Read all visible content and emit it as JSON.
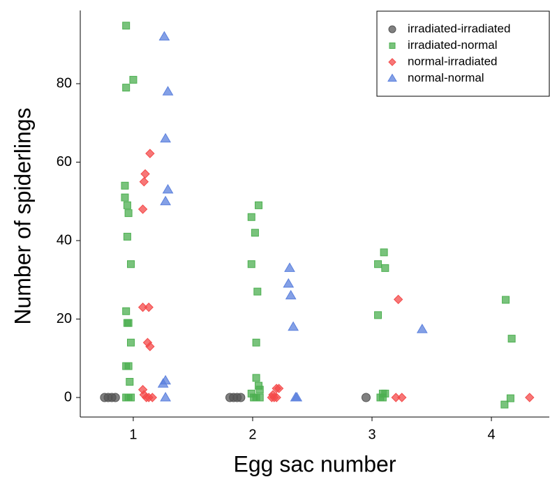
{
  "chart_data": {
    "type": "scatter",
    "x_label": "Egg sac number",
    "y_label": "Number of spiderlings",
    "xlim": [
      0.556,
      4.485
    ],
    "ylim": [
      -4.98,
      98.67
    ],
    "xticks": [
      1,
      2,
      3,
      4
    ],
    "yticks": [
      0,
      20,
      40,
      60,
      80
    ],
    "grid": false,
    "legend_position": "upper right",
    "series": [
      {
        "name": "irradiated-irradiated",
        "color": "#555555",
        "marker": "circle",
        "x": [
          0.76,
          0.79,
          0.82,
          0.85,
          1.81,
          1.84,
          1.87,
          1.9,
          2.95
        ],
        "values": [
          0,
          0,
          0,
          0,
          0,
          0,
          0,
          0,
          0
        ]
      },
      {
        "name": "irradiated-normal",
        "color": "#4caf50",
        "marker": "square",
        "x": [
          0.94,
          1.0,
          0.94,
          0.93,
          0.93,
          0.95,
          0.96,
          0.95,
          0.98,
          0.94,
          0.95,
          0.96,
          0.98,
          0.94,
          0.96,
          0.97,
          0.94,
          0.96,
          0.98,
          1.99,
          2.05,
          2.02,
          1.99,
          2.04,
          2.03,
          2.03,
          2.05,
          2.06,
          1.99,
          2.01,
          2.03,
          2.06,
          3.1,
          3.05,
          3.11,
          3.05,
          3.09,
          3.11,
          3.07,
          3.09,
          4.12,
          4.17,
          4.16,
          4.11
        ],
        "values": [
          94.8,
          81,
          79,
          54,
          51,
          49,
          47,
          41,
          34,
          22,
          19,
          19,
          14,
          8,
          8,
          4,
          0,
          0,
          0,
          46,
          49,
          42,
          34,
          27,
          14,
          5,
          3,
          2,
          1,
          0,
          0,
          0,
          37,
          34,
          33,
          21,
          1,
          1,
          0,
          0,
          24.9,
          15,
          -0.2,
          -1.8
        ]
      },
      {
        "name": "normal-irradiated",
        "color": "#f44a4a",
        "marker": "diamond",
        "x": [
          1.14,
          1.1,
          1.09,
          1.08,
          1.08,
          1.13,
          1.12,
          1.14,
          1.08,
          1.09,
          1.11,
          1.13,
          1.16,
          2.2,
          2.22,
          2.16,
          2.18,
          2.2,
          2.17,
          3.22,
          3.2,
          3.25,
          4.32
        ],
        "values": [
          62.2,
          57,
          55,
          48,
          23,
          23,
          14,
          13,
          2,
          0.7,
          0,
          0,
          0,
          2.3,
          2.3,
          0,
          0,
          0,
          0.7,
          25,
          0,
          0,
          0
        ]
      },
      {
        "name": "normal-normal",
        "color": "#5b80dd",
        "marker": "triangle",
        "x": [
          1.26,
          1.29,
          1.27,
          1.29,
          1.27,
          1.27,
          1.25,
          1.27,
          2.31,
          2.3,
          2.32,
          2.34,
          2.36,
          2.37,
          3.42
        ],
        "values": [
          92,
          78,
          66,
          53,
          50,
          4.3,
          3.5,
          0,
          33,
          29,
          26,
          18,
          0,
          0,
          17.4
        ]
      }
    ]
  }
}
